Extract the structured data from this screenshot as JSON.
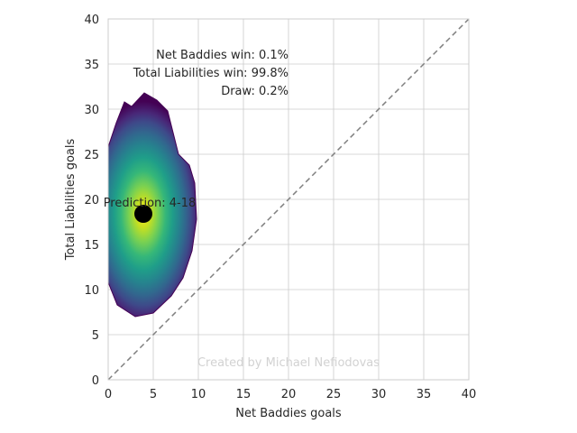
{
  "chart_data": {
    "type": "heatmap",
    "title": "",
    "xlabel": "Net Baddies goals",
    "ylabel": "Total Liabilities goals",
    "xlim": [
      0,
      40
    ],
    "ylim": [
      0,
      40
    ],
    "x_ticks": [
      0,
      5,
      10,
      15,
      20,
      25,
      30,
      35,
      40
    ],
    "y_ticks": [
      0,
      5,
      10,
      15,
      20,
      25,
      30,
      35,
      40
    ],
    "grid": true,
    "colormap": "viridis",
    "density": {
      "center_x": 3.9,
      "center_y": 18.4,
      "spread_x": 2.7,
      "spread_y": 5.2,
      "boundary": [
        [
          0,
          10.8
        ],
        [
          1.0,
          8.3
        ],
        [
          3.0,
          7.0
        ],
        [
          5.0,
          7.4
        ],
        [
          7.0,
          9.3
        ],
        [
          8.3,
          11.3
        ],
        [
          9.3,
          14.3
        ],
        [
          9.8,
          17.8
        ],
        [
          9.6,
          21.8
        ],
        [
          9.0,
          23.8
        ],
        [
          7.8,
          25.0
        ],
        [
          6.6,
          29.8
        ],
        [
          5.4,
          31.0
        ],
        [
          4.0,
          31.8
        ],
        [
          2.6,
          30.3
        ],
        [
          1.8,
          30.8
        ],
        [
          0.9,
          28.5
        ],
        [
          0,
          25.8
        ]
      ]
    },
    "diagonal": {
      "from": [
        0,
        0
      ],
      "to": [
        40,
        40
      ],
      "color": "#808080",
      "style": "dashed"
    },
    "prediction": {
      "x": 3.9,
      "y": 18.4,
      "label": "Prediction: 4-18",
      "color": "#000000"
    },
    "outcome_text": [
      "Net Baddies win: 0.1%",
      "Total Liabilities win: 99.8%",
      "Draw: 0.2%"
    ],
    "watermark": "Created by Michael Nefiodovas"
  }
}
